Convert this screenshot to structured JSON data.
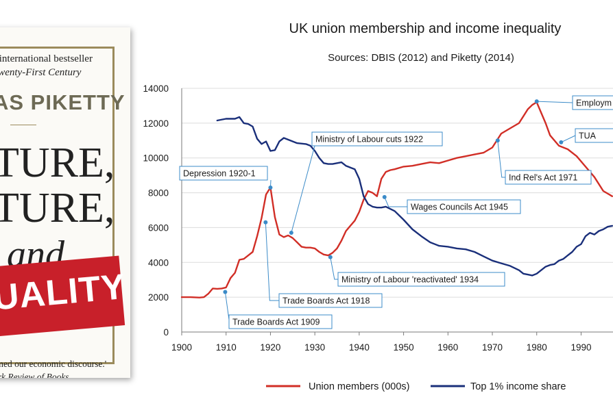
{
  "book": {
    "blurb_line1": "f international bestseller",
    "blurb_line2": "Twenty-First Century",
    "author": "AS PIKETTY",
    "title_line1": "TURE,",
    "title_line2": "TURE,",
    "title_line3": "and",
    "ribbon_text": "UALITY",
    "quote_line1": "rmed our economic discourse.'",
    "quote_line2": "ork Review of Books",
    "frame_color": "#9b8b5c",
    "ribbon_color": "#c8202a"
  },
  "chart_data": {
    "type": "line",
    "title": "UK union membership and income inequality",
    "subtitle": "Sources: DBIS (2012) and Piketty (2014)",
    "xlim": [
      1900,
      1997
    ],
    "ylim": [
      0,
      14000
    ],
    "x_ticks": [
      1900,
      1910,
      1920,
      1930,
      1940,
      1950,
      1960,
      1970,
      1980,
      1990
    ],
    "y_ticks": [
      0,
      2000,
      4000,
      6000,
      8000,
      10000,
      12000,
      14000
    ],
    "grid": "horizontal",
    "legend_position": "bottom",
    "series": [
      {
        "name": "Union members (000s)",
        "color": "#d12e26",
        "x": [
          1900,
          1902,
          1904,
          1905,
          1906,
          1907,
          1908,
          1909,
          1910,
          1911,
          1912,
          1913,
          1914,
          1915,
          1916,
          1917,
          1918,
          1919,
          1920,
          1921,
          1922,
          1923,
          1924,
          1925,
          1926,
          1927,
          1928,
          1929,
          1930,
          1931,
          1932,
          1933,
          1934,
          1935,
          1936,
          1937,
          1938,
          1939,
          1940,
          1941,
          1942,
          1943,
          1944,
          1945,
          1946,
          1947,
          1948,
          1950,
          1952,
          1954,
          1956,
          1958,
          1960,
          1962,
          1964,
          1966,
          1968,
          1970,
          1972,
          1974,
          1976,
          1978,
          1979,
          1980,
          1981,
          1982,
          1983,
          1985,
          1987,
          1989,
          1991,
          1993,
          1995,
          1997
        ],
        "y": [
          2000,
          2000,
          1980,
          2000,
          2200,
          2500,
          2480,
          2500,
          2560,
          3100,
          3400,
          4150,
          4200,
          4400,
          4600,
          5500,
          6550,
          7900,
          8300,
          6600,
          5600,
          5450,
          5550,
          5400,
          5150,
          4900,
          4850,
          4850,
          4800,
          4600,
          4450,
          4400,
          4550,
          4800,
          5250,
          5800,
          6100,
          6400,
          6900,
          7600,
          8100,
          8000,
          7800,
          8800,
          9200,
          9300,
          9350,
          9500,
          9550,
          9650,
          9750,
          9700,
          9850,
          10000,
          10100,
          10200,
          10300,
          10600,
          11400,
          11700,
          12000,
          12800,
          13050,
          13200,
          12600,
          12000,
          11300,
          10700,
          10500,
          10100,
          9500,
          8900,
          8100,
          7800
        ]
      },
      {
        "name": "Top 1% income share",
        "color": "#1a2f7a",
        "x": [
          1908,
          1910,
          1912,
          1913,
          1914,
          1915,
          1916,
          1917,
          1918,
          1919,
          1920,
          1921,
          1922,
          1923,
          1924,
          1926,
          1928,
          1929,
          1930,
          1931,
          1932,
          1933,
          1934,
          1935,
          1936,
          1937,
          1938,
          1939,
          1940,
          1941,
          1942,
          1943,
          1944,
          1945,
          1946,
          1948,
          1950,
          1952,
          1954,
          1956,
          1958,
          1960,
          1962,
          1964,
          1966,
          1968,
          1970,
          1972,
          1974,
          1976,
          1977,
          1978,
          1979,
          1980,
          1981,
          1982,
          1983,
          1984,
          1985,
          1986,
          1987,
          1988,
          1989,
          1990,
          1991,
          1992,
          1993,
          1994,
          1995,
          1996,
          1997
        ],
        "y": [
          12150,
          12250,
          12250,
          12350,
          12000,
          11950,
          11800,
          11100,
          10800,
          10950,
          10400,
          10450,
          10950,
          11150,
          11050,
          10850,
          10800,
          10700,
          10400,
          10000,
          9700,
          9650,
          9650,
          9700,
          9750,
          9550,
          9450,
          9350,
          8800,
          7800,
          7350,
          7200,
          7150,
          7150,
          7200,
          6950,
          6450,
          5900,
          5500,
          5150,
          4950,
          4900,
          4800,
          4750,
          4600,
          4350,
          4100,
          3950,
          3800,
          3550,
          3350,
          3300,
          3250,
          3350,
          3550,
          3750,
          3850,
          3900,
          4100,
          4200,
          4400,
          4600,
          4900,
          5050,
          5500,
          5700,
          5600,
          5800,
          5900,
          6050,
          6100
        ]
      }
    ],
    "annotations": [
      {
        "text": "Employm",
        "x": 1980,
        "y": 13250
      },
      {
        "text": "TUA",
        "x": 1985.5,
        "y": 10900
      },
      {
        "text": "Ministry of Labour cuts 1922",
        "x": 1924.7,
        "y": 5700
      },
      {
        "text": "Depression 1920-1",
        "x": 1920,
        "y": 8300
      },
      {
        "text": "Ind Rel's Act 1971",
        "x": 1971.2,
        "y": 11000
      },
      {
        "text": "Wages Councils Act 1945",
        "x": 1945.7,
        "y": 7750
      },
      {
        "text": "Ministry of Labour 'reactivated' 1934",
        "x": 1933.5,
        "y": 4300
      },
      {
        "text": "Trade Boards Act 1918",
        "x": 1918.9,
        "y": 6300
      },
      {
        "text": "Trade Boards Act 1909",
        "x": 1909.8,
        "y": 2300
      }
    ]
  }
}
